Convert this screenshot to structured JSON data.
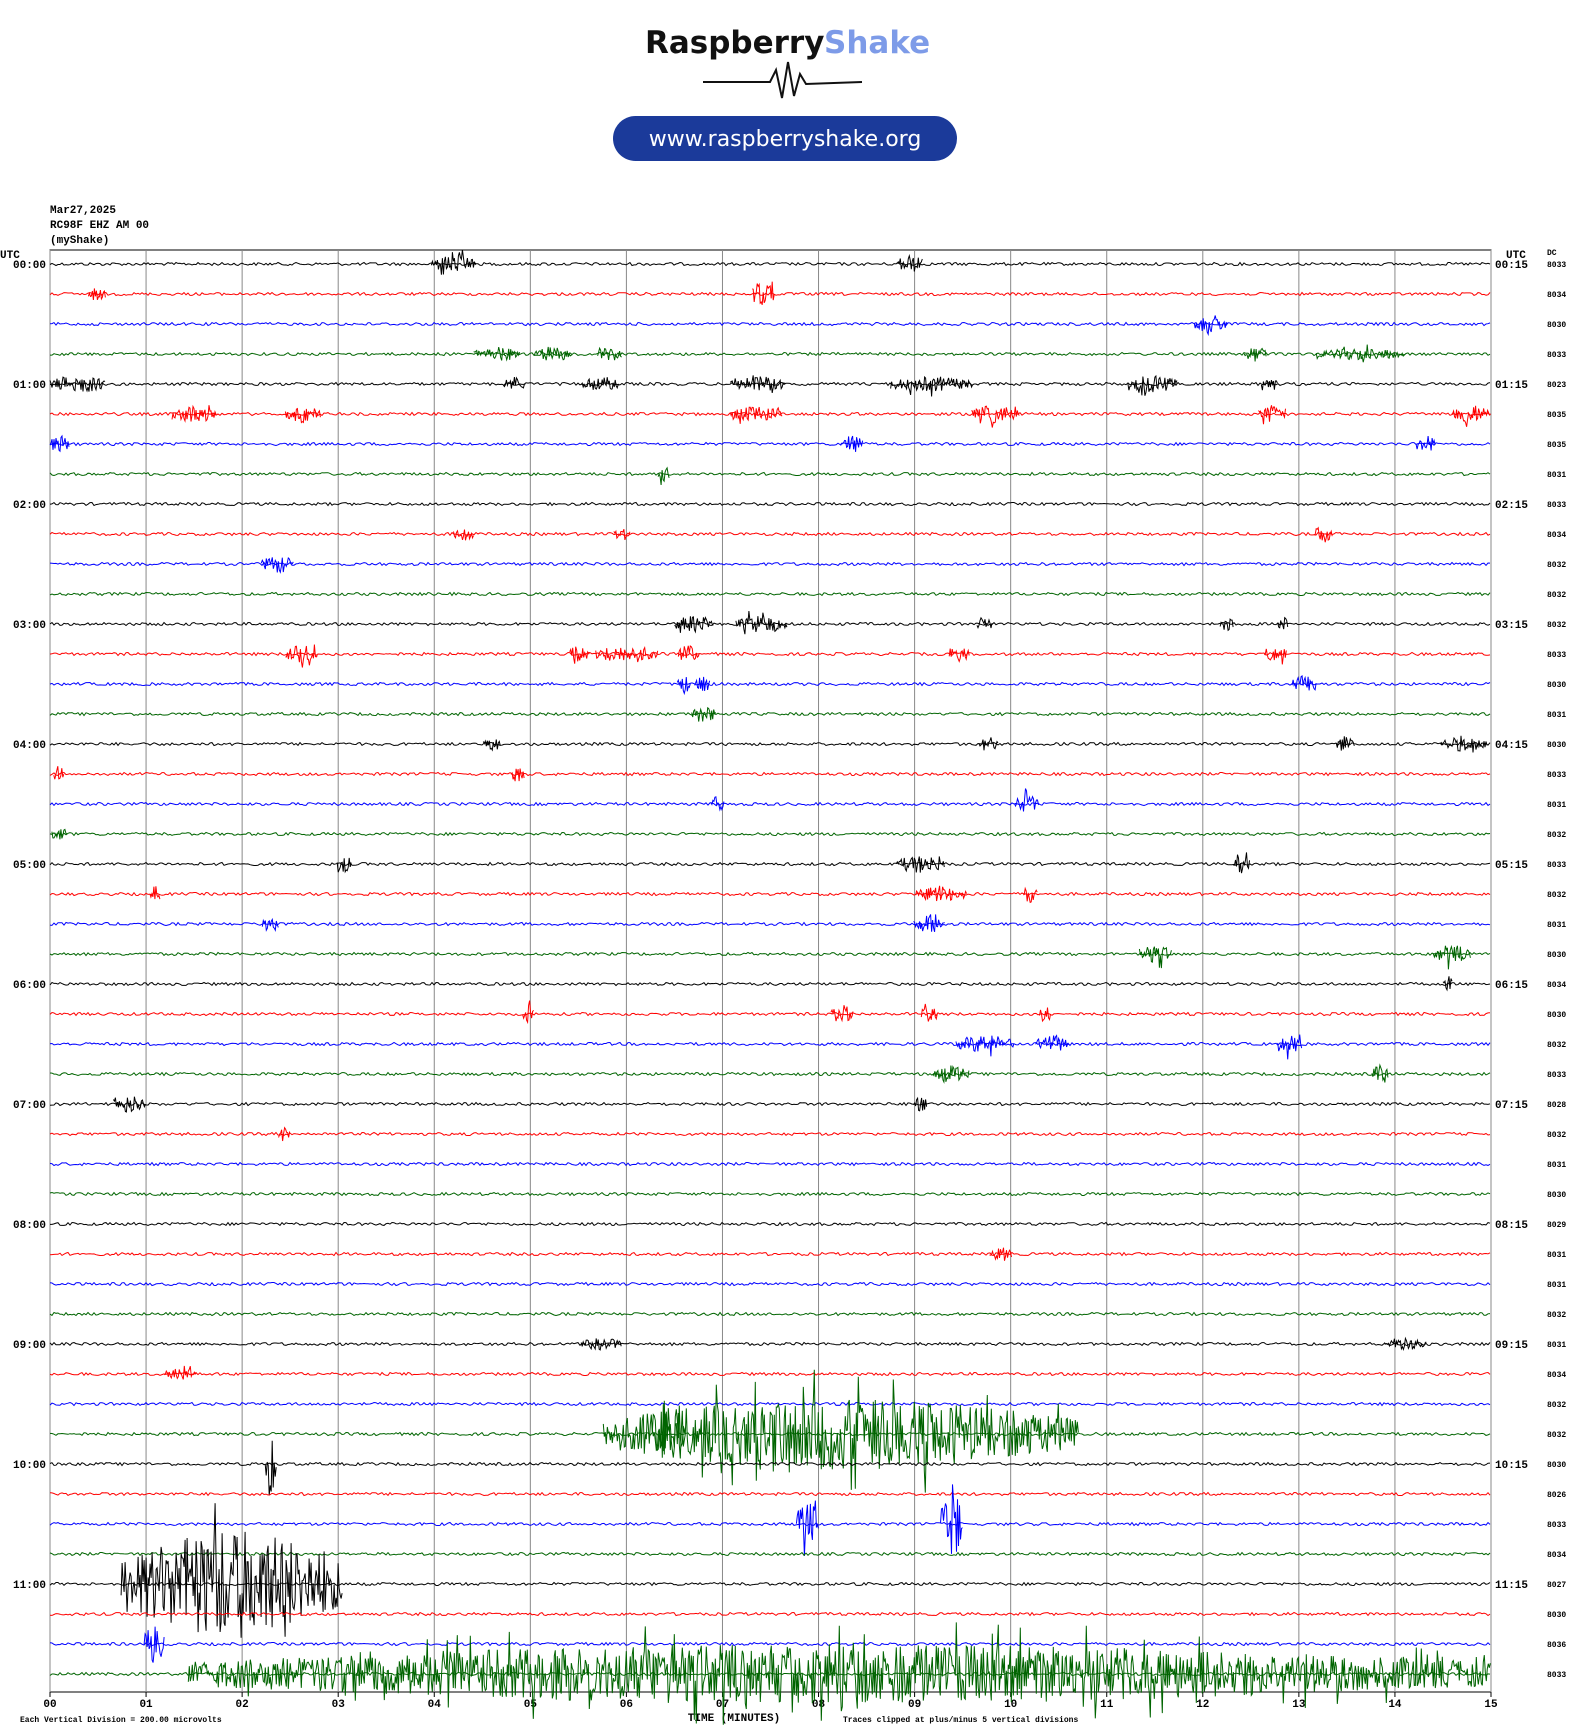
{
  "header": {
    "brand_1": "Raspberry",
    "brand_2": "Shake",
    "url": "www.raspberryshake.org"
  },
  "chart_data": {
    "type": "helicorder",
    "date": "Mar27,2025",
    "station": "RC98F EHZ AM 00",
    "network": "(myShake)",
    "left_axis_label": "UTC",
    "right_axis_label": "UTC",
    "dc_label": "DC",
    "left_times": [
      "00:00",
      "01:00",
      "02:00",
      "03:00",
      "04:00",
      "05:00",
      "06:00",
      "07:00",
      "08:00",
      "09:00",
      "10:00",
      "11:00"
    ],
    "right_times": [
      "00:15",
      "01:15",
      "02:15",
      "03:15",
      "04:15",
      "05:15",
      "06:15",
      "07:15",
      "08:15",
      "09:15",
      "10:15",
      "11:15"
    ],
    "xlim": [
      0,
      15
    ],
    "xticks": [
      {
        "value": 0,
        "label": "00"
      },
      {
        "value": 1,
        "label": "01"
      },
      {
        "value": 2,
        "label": "02"
      },
      {
        "value": 3,
        "label": "03"
      },
      {
        "value": 4,
        "label": "04"
      },
      {
        "value": 5,
        "label": "05"
      },
      {
        "value": 6,
        "label": "06"
      },
      {
        "value": 7,
        "label": "07"
      },
      {
        "value": 8,
        "label": "08"
      },
      {
        "value": 9,
        "label": "09"
      },
      {
        "value": 10,
        "label": "10"
      },
      {
        "value": 11,
        "label": "11"
      },
      {
        "value": 12,
        "label": "12"
      },
      {
        "value": 13,
        "label": "13"
      },
      {
        "value": 14,
        "label": "14"
      },
      {
        "value": 15,
        "label": "15"
      }
    ],
    "x_label": "TIME (MINUTES)",
    "footer_left": "Each Vertical Division =  200.00 microvolts",
    "footer_right": "Traces clipped at plus/minus 5 vertical divisions",
    "colors": [
      "#000000",
      "#ff0000",
      "#0000ff",
      "#006400"
    ],
    "grid": true,
    "noise": 0.05,
    "rows": [
      {
        "dc": "8033",
        "bursts": [
          [
            3.97,
            4.43,
            0.3
          ],
          [
            8.81,
            9.09,
            0.3
          ]
        ]
      },
      {
        "dc": "8034",
        "bursts": [
          [
            0.4,
            0.58,
            0.3
          ],
          [
            7.31,
            7.54,
            0.5
          ]
        ]
      },
      {
        "dc": "8030",
        "bursts": [
          [
            11.91,
            12.26,
            0.3
          ]
        ]
      },
      {
        "dc": "8033",
        "bursts": [
          [
            4.41,
            4.89,
            0.25
          ],
          [
            5.04,
            5.44,
            0.25
          ],
          [
            5.7,
            5.96,
            0.25
          ],
          [
            12.43,
            12.66,
            0.25
          ],
          [
            13.18,
            14.1,
            0.2
          ]
        ]
      },
      {
        "dc": "8023",
        "bursts": [
          [
            0,
            0.58,
            0.3
          ],
          [
            4.72,
            4.95,
            0.25
          ],
          [
            5.53,
            5.93,
            0.25
          ],
          [
            7.08,
            7.66,
            0.25
          ],
          [
            8.75,
            9.61,
            0.25
          ],
          [
            11.22,
            11.74,
            0.3
          ],
          [
            12.61,
            12.78,
            0.25
          ]
        ]
      },
      {
        "dc": "8035",
        "bursts": [
          [
            1.27,
            1.73,
            0.3
          ],
          [
            2.45,
            2.82,
            0.3
          ],
          [
            7.08,
            7.63,
            0.25
          ],
          [
            9.59,
            10.1,
            0.3
          ],
          [
            12.58,
            12.87,
            0.3
          ],
          [
            14.59,
            15,
            0.3
          ]
        ]
      },
      {
        "dc": "8035",
        "bursts": [
          [
            0,
            0.2,
            0.3
          ],
          [
            8.23,
            8.46,
            0.3
          ],
          [
            14.22,
            14.42,
            0.3
          ]
        ]
      },
      {
        "dc": "8031",
        "bursts": [
          [
            6.33,
            6.45,
            0.3
          ]
        ]
      },
      {
        "dc": "8033",
        "bursts": []
      },
      {
        "dc": "8034",
        "bursts": [
          [
            4.2,
            4.41,
            0.3
          ],
          [
            5.87,
            6.04,
            0.25
          ],
          [
            13.16,
            13.35,
            0.3
          ]
        ]
      },
      {
        "dc": "8032",
        "bursts": [
          [
            2.2,
            2.54,
            0.3
          ]
        ]
      },
      {
        "dc": "8032",
        "bursts": []
      },
      {
        "dc": "8032",
        "bursts": [
          [
            6.5,
            6.91,
            0.3
          ],
          [
            7.14,
            7.68,
            0.3
          ],
          [
            9.65,
            9.81,
            0.25
          ],
          [
            12.18,
            12.32,
            0.25
          ],
          [
            12.78,
            12.89,
            0.25
          ]
        ]
      },
      {
        "dc": "8033",
        "bursts": [
          [
            2.45,
            2.79,
            0.3
          ],
          [
            5.41,
            5.62,
            0.3
          ],
          [
            5.68,
            6.33,
            0.3
          ],
          [
            6.54,
            6.76,
            0.3
          ],
          [
            9.36,
            9.57,
            0.25
          ],
          [
            12.64,
            12.87,
            0.3
          ]
        ]
      },
      {
        "dc": "8030",
        "bursts": [
          [
            6.53,
            6.67,
            0.3
          ],
          [
            6.71,
            6.87,
            0.25
          ],
          [
            12.93,
            13.18,
            0.3
          ]
        ]
      },
      {
        "dc": "8031",
        "bursts": [
          [
            6.68,
            6.93,
            0.3
          ]
        ]
      },
      {
        "dc": "8030",
        "bursts": [
          [
            4.51,
            4.69,
            0.25
          ],
          [
            9.67,
            9.87,
            0.25
          ],
          [
            13.39,
            13.58,
            0.3
          ],
          [
            14.48,
            14.96,
            0.25
          ]
        ]
      },
      {
        "dc": "8033",
        "bursts": [
          [
            0.04,
            0.15,
            0.3
          ],
          [
            4.8,
            4.94,
            0.3
          ]
        ]
      },
      {
        "dc": "8031",
        "bursts": [
          [
            6.88,
            7.02,
            0.3
          ],
          [
            10.04,
            10.3,
            0.3
          ]
        ]
      },
      {
        "dc": "8032",
        "bursts": [
          [
            0.02,
            0.18,
            0.3
          ]
        ]
      },
      {
        "dc": "8033",
        "bursts": [
          [
            2.99,
            3.14,
            0.3
          ],
          [
            8.81,
            9.32,
            0.3
          ],
          [
            12.32,
            12.49,
            0.3
          ]
        ]
      },
      {
        "dc": "8032",
        "bursts": [
          [
            1.04,
            1.15,
            0.3
          ],
          [
            9.01,
            9.55,
            0.25
          ],
          [
            10.13,
            10.28,
            0.3
          ]
        ]
      },
      {
        "dc": "8031",
        "bursts": [
          [
            2.21,
            2.38,
            0.3
          ],
          [
            8.99,
            9.32,
            0.3
          ]
        ]
      },
      {
        "dc": "8030",
        "bursts": [
          [
            11.34,
            11.68,
            0.3
          ],
          [
            14.39,
            14.79,
            0.3
          ]
        ]
      },
      {
        "dc": "8034",
        "bursts": [
          [
            14.5,
            14.6,
            0.3
          ]
        ]
      },
      {
        "dc": "8030",
        "bursts": [
          [
            4.92,
            5.04,
            0.3
          ],
          [
            8.13,
            8.36,
            0.3
          ],
          [
            9.07,
            9.24,
            0.3
          ],
          [
            10.3,
            10.42,
            0.3
          ]
        ]
      },
      {
        "dc": "8032",
        "bursts": [
          [
            9.43,
            10.04,
            0.3
          ],
          [
            10.26,
            10.61,
            0.3
          ],
          [
            12.78,
            13.04,
            0.3
          ]
        ]
      },
      {
        "dc": "8033",
        "bursts": [
          [
            9.19,
            9.57,
            0.3
          ],
          [
            13.76,
            13.93,
            0.3
          ]
        ]
      },
      {
        "dc": "8028",
        "bursts": [
          [
            0.66,
            1.0,
            0.3
          ],
          [
            8.99,
            9.13,
            0.3
          ]
        ]
      },
      {
        "dc": "8032",
        "bursts": [
          [
            2.38,
            2.5,
            0.3
          ]
        ]
      },
      {
        "dc": "8031",
        "bursts": []
      },
      {
        "dc": "8030",
        "bursts": []
      },
      {
        "dc": "8029",
        "bursts": []
      },
      {
        "dc": "8031",
        "bursts": [
          [
            9.78,
            10.01,
            0.25
          ]
        ]
      },
      {
        "dc": "8031",
        "bursts": []
      },
      {
        "dc": "8032",
        "bursts": []
      },
      {
        "dc": "8031",
        "bursts": [
          [
            5.53,
            5.95,
            0.2
          ],
          [
            13.89,
            14.33,
            0.2
          ]
        ]
      },
      {
        "dc": "8034",
        "bursts": [
          [
            1.19,
            1.53,
            0.2
          ]
        ]
      },
      {
        "dc": "8032",
        "bursts": []
      },
      {
        "dc": "8032",
        "bursts": [
          [
            5.76,
            10.71,
            1.2
          ],
          [
            6.27,
            6.62,
            0.9
          ]
        ]
      },
      {
        "dc": "8030",
        "bursts": [
          [
            2.24,
            2.36,
            1.0
          ]
        ]
      },
      {
        "dc": "8026",
        "bursts": []
      },
      {
        "dc": "8033",
        "bursts": [
          [
            7.77,
            8.0,
            0.8
          ],
          [
            9.27,
            9.5,
            1.2
          ]
        ]
      },
      {
        "dc": "8034",
        "bursts": []
      },
      {
        "dc": "8027",
        "bursts": [
          [
            0.74,
            3.05,
            1.8
          ]
        ]
      },
      {
        "dc": "8030",
        "bursts": []
      },
      {
        "dc": "8036",
        "bursts": [
          [
            0.98,
            1.19,
            0.7
          ]
        ]
      },
      {
        "dc": "8033",
        "bursts": [
          [
            1.44,
            15,
            1.0
          ]
        ]
      }
    ]
  }
}
